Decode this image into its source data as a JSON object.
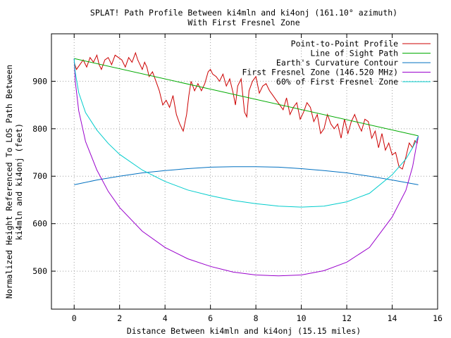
{
  "chart_data": {
    "type": "line",
    "title": "SPLAT! Path Profile Between ki4mln and ki4onj (161.10° azimuth)",
    "subtitle": "With First Fresnel Zone",
    "xlabel": "Distance Between ki4mln and ki4onj (15.15 miles)",
    "ylabel_line1": "Normalized Height Referenced To LOS Path Between",
    "ylabel_line2": "ki4mln and ki4onj (feet)",
    "xlim": [
      -1,
      16
    ],
    "ylim": [
      420,
      1000
    ],
    "x_ticks": [
      0,
      2,
      4,
      6,
      8,
      10,
      12,
      14,
      16
    ],
    "y_ticks": [
      500,
      600,
      700,
      800,
      900
    ],
    "grid": true,
    "legend_position": "top-right",
    "series": [
      {
        "name": "Point-to-Point Profile",
        "color": "#cc0000",
        "x": [
          0,
          0.1,
          0.25,
          0.4,
          0.55,
          0.7,
          0.85,
          1.0,
          1.1,
          1.2,
          1.35,
          1.5,
          1.65,
          1.8,
          1.95,
          2.1,
          2.25,
          2.4,
          2.55,
          2.7,
          2.8,
          2.9,
          3.0,
          3.1,
          3.2,
          3.3,
          3.45,
          3.6,
          3.75,
          3.9,
          4.05,
          4.2,
          4.35,
          4.5,
          4.65,
          4.8,
          4.95,
          5.05,
          5.15,
          5.3,
          5.45,
          5.6,
          5.75,
          5.9,
          6.0,
          6.1,
          6.25,
          6.4,
          6.55,
          6.7,
          6.85,
          7.0,
          7.1,
          7.2,
          7.35,
          7.5,
          7.6,
          7.7,
          7.85,
          8.0,
          8.15,
          8.3,
          8.45,
          8.6,
          8.75,
          8.9,
          9.05,
          9.2,
          9.35,
          9.5,
          9.65,
          9.8,
          9.95,
          10.1,
          10.25,
          10.4,
          10.55,
          10.7,
          10.85,
          11.0,
          11.15,
          11.3,
          11.45,
          11.6,
          11.75,
          11.9,
          12.05,
          12.2,
          12.35,
          12.5,
          12.65,
          12.8,
          12.95,
          13.1,
          13.25,
          13.4,
          13.55,
          13.7,
          13.85,
          14.0,
          14.15,
          14.3,
          14.45,
          14.6,
          14.75,
          14.9,
          15.0,
          15.1,
          15.15
        ],
        "y": [
          940,
          925,
          935,
          945,
          930,
          950,
          940,
          955,
          935,
          925,
          945,
          950,
          935,
          955,
          950,
          945,
          930,
          950,
          940,
          960,
          945,
          935,
          925,
          940,
          930,
          910,
          920,
          900,
          880,
          850,
          860,
          845,
          870,
          830,
          810,
          795,
          830,
          870,
          900,
          880,
          895,
          880,
          895,
          920,
          925,
          915,
          910,
          900,
          915,
          890,
          905,
          875,
          850,
          890,
          905,
          835,
          825,
          880,
          900,
          910,
          875,
          890,
          895,
          880,
          870,
          860,
          850,
          840,
          865,
          830,
          845,
          855,
          820,
          835,
          855,
          845,
          815,
          830,
          790,
          800,
          830,
          810,
          800,
          810,
          780,
          820,
          790,
          815,
          830,
          810,
          795,
          820,
          815,
          780,
          795,
          760,
          790,
          755,
          770,
          745,
          750,
          720,
          715,
          740,
          770,
          760,
          775,
          770,
          785
        ]
      },
      {
        "name": "Line of Sight Path",
        "color": "#00aa00",
        "x": [
          0,
          15.15
        ],
        "y": [
          948,
          785
        ]
      },
      {
        "name": "Earth's Curvature Contour",
        "color": "#0070c0",
        "x": [
          0,
          1,
          2,
          3,
          4,
          5,
          6,
          7,
          7.575,
          8,
          9,
          10,
          11,
          12,
          13,
          14,
          15.15
        ],
        "y": [
          682,
          692,
          700,
          707,
          712,
          716,
          719,
          720,
          720,
          720,
          719,
          716,
          712,
          707,
          700,
          692,
          682
        ]
      },
      {
        "name": "First Fresnel Zone (146.520 MHz)",
        "color": "#9900cc",
        "x": [
          0,
          0.05,
          0.2,
          0.5,
          1,
          1.5,
          2,
          3,
          4,
          5,
          6,
          7,
          8,
          9,
          10,
          11,
          12,
          13,
          14,
          14.6,
          14.9,
          15.05,
          15.15
        ],
        "y": [
          948,
          900,
          838,
          773,
          713,
          668,
          634,
          584,
          550,
          526,
          510,
          498,
          492,
          490,
          492,
          501,
          519,
          550,
          614,
          670,
          720,
          760,
          785
        ]
      },
      {
        "name": "60% of First Fresnel Zone",
        "color": "#00cccc",
        "x": [
          0,
          0.05,
          0.2,
          0.5,
          1,
          1.5,
          2,
          3,
          4,
          5,
          6,
          7,
          8,
          9,
          10,
          11,
          12,
          13,
          14,
          14.6,
          14.9,
          15.05,
          15.15
        ],
        "y": [
          948,
          919,
          876,
          834,
          797,
          769,
          746,
          713,
          689,
          671,
          659,
          649,
          642,
          637,
          635,
          637,
          646,
          664,
          703,
          736,
          760,
          774,
          785
        ]
      }
    ]
  }
}
